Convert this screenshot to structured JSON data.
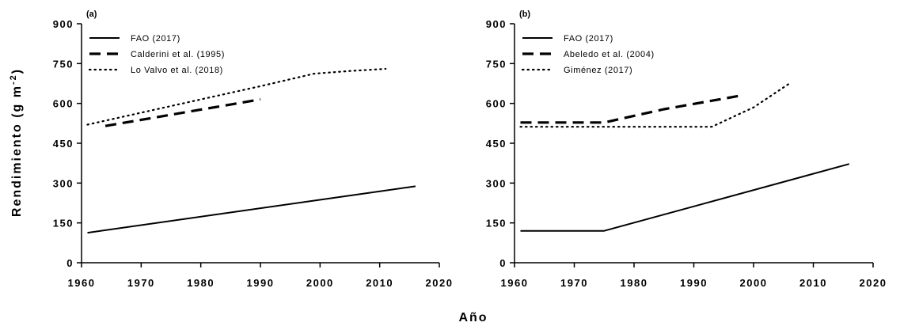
{
  "figure": {
    "xlabel": "Año",
    "ylabel_main": "Rendimiento (g m",
    "ylabel_sup": "-2",
    "ylabel_close": ")"
  },
  "chart_data": [
    {
      "type": "line",
      "panel_label": "(a)",
      "xlim": [
        1960,
        2020
      ],
      "ylim": [
        0,
        900
      ],
      "xticks": [
        1960,
        1970,
        1980,
        1990,
        2000,
        2010,
        2020
      ],
      "yticks": [
        0,
        150,
        300,
        450,
        600,
        750,
        900
      ],
      "legend_position": "top-left",
      "series": [
        {
          "name": "FAO (2017)",
          "style": "solid",
          "x": [
            1961,
            2016
          ],
          "y": [
            113,
            288
          ]
        },
        {
          "name": "Calderini et al. (1995)",
          "style": "dashed",
          "x": [
            1964,
            1990
          ],
          "y": [
            515,
            615
          ]
        },
        {
          "name": "Lo Valvo et al. (2018)",
          "style": "dotted",
          "x": [
            1961,
            1970,
            1980,
            1990,
            1999,
            2005,
            2011
          ],
          "y": [
            520,
            565,
            615,
            665,
            712,
            722,
            730
          ]
        }
      ]
    },
    {
      "type": "line",
      "panel_label": "(b)",
      "xlim": [
        1960,
        2020
      ],
      "ylim": [
        0,
        900
      ],
      "xticks": [
        1960,
        1970,
        1980,
        1990,
        2000,
        2010,
        2020
      ],
      "yticks": [
        0,
        150,
        300,
        450,
        600,
        750,
        900
      ],
      "legend_position": "top-left",
      "series": [
        {
          "name": "FAO (2017)",
          "style": "solid",
          "x": [
            1961,
            1975,
            2016
          ],
          "y": [
            120,
            120,
            372
          ]
        },
        {
          "name": "Abeledo et al. (2004)",
          "style": "dashed",
          "x": [
            1961,
            1975,
            1985,
            1998
          ],
          "y": [
            528,
            528,
            578,
            630
          ]
        },
        {
          "name": "Giménez (2017)",
          "style": "dotted",
          "x": [
            1961,
            1975,
            1985,
            1993,
            2000,
            2006
          ],
          "y": [
            512,
            512,
            512,
            512,
            585,
            675
          ]
        }
      ]
    }
  ]
}
